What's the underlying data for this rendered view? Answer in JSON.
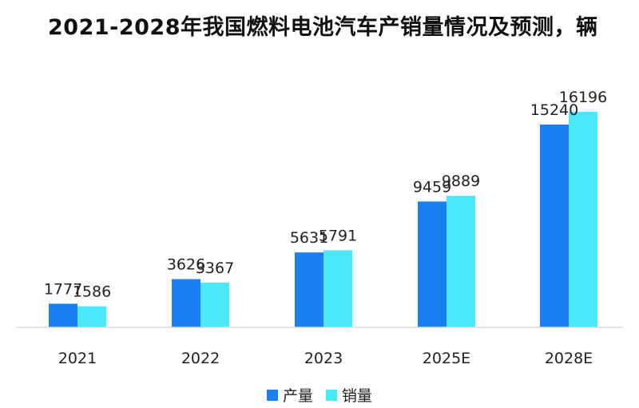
{
  "chart_data": {
    "type": "bar",
    "title": "2021-2028年我国燃料电池汽车产销量情况及预测，辆",
    "categories": [
      "2021",
      "2022",
      "2023",
      "2025E",
      "2028E"
    ],
    "series": [
      {
        "name": "产量",
        "values": [
          1777,
          3626,
          5631,
          9459,
          15240
        ],
        "color": "#1a7ff0"
      },
      {
        "name": "销量",
        "values": [
          1586,
          3367,
          5791,
          9889,
          16196
        ],
        "color": "#4de8f8"
      }
    ],
    "ylim": [
      0,
      18000
    ],
    "grid": false,
    "legend_position": "bottom"
  }
}
